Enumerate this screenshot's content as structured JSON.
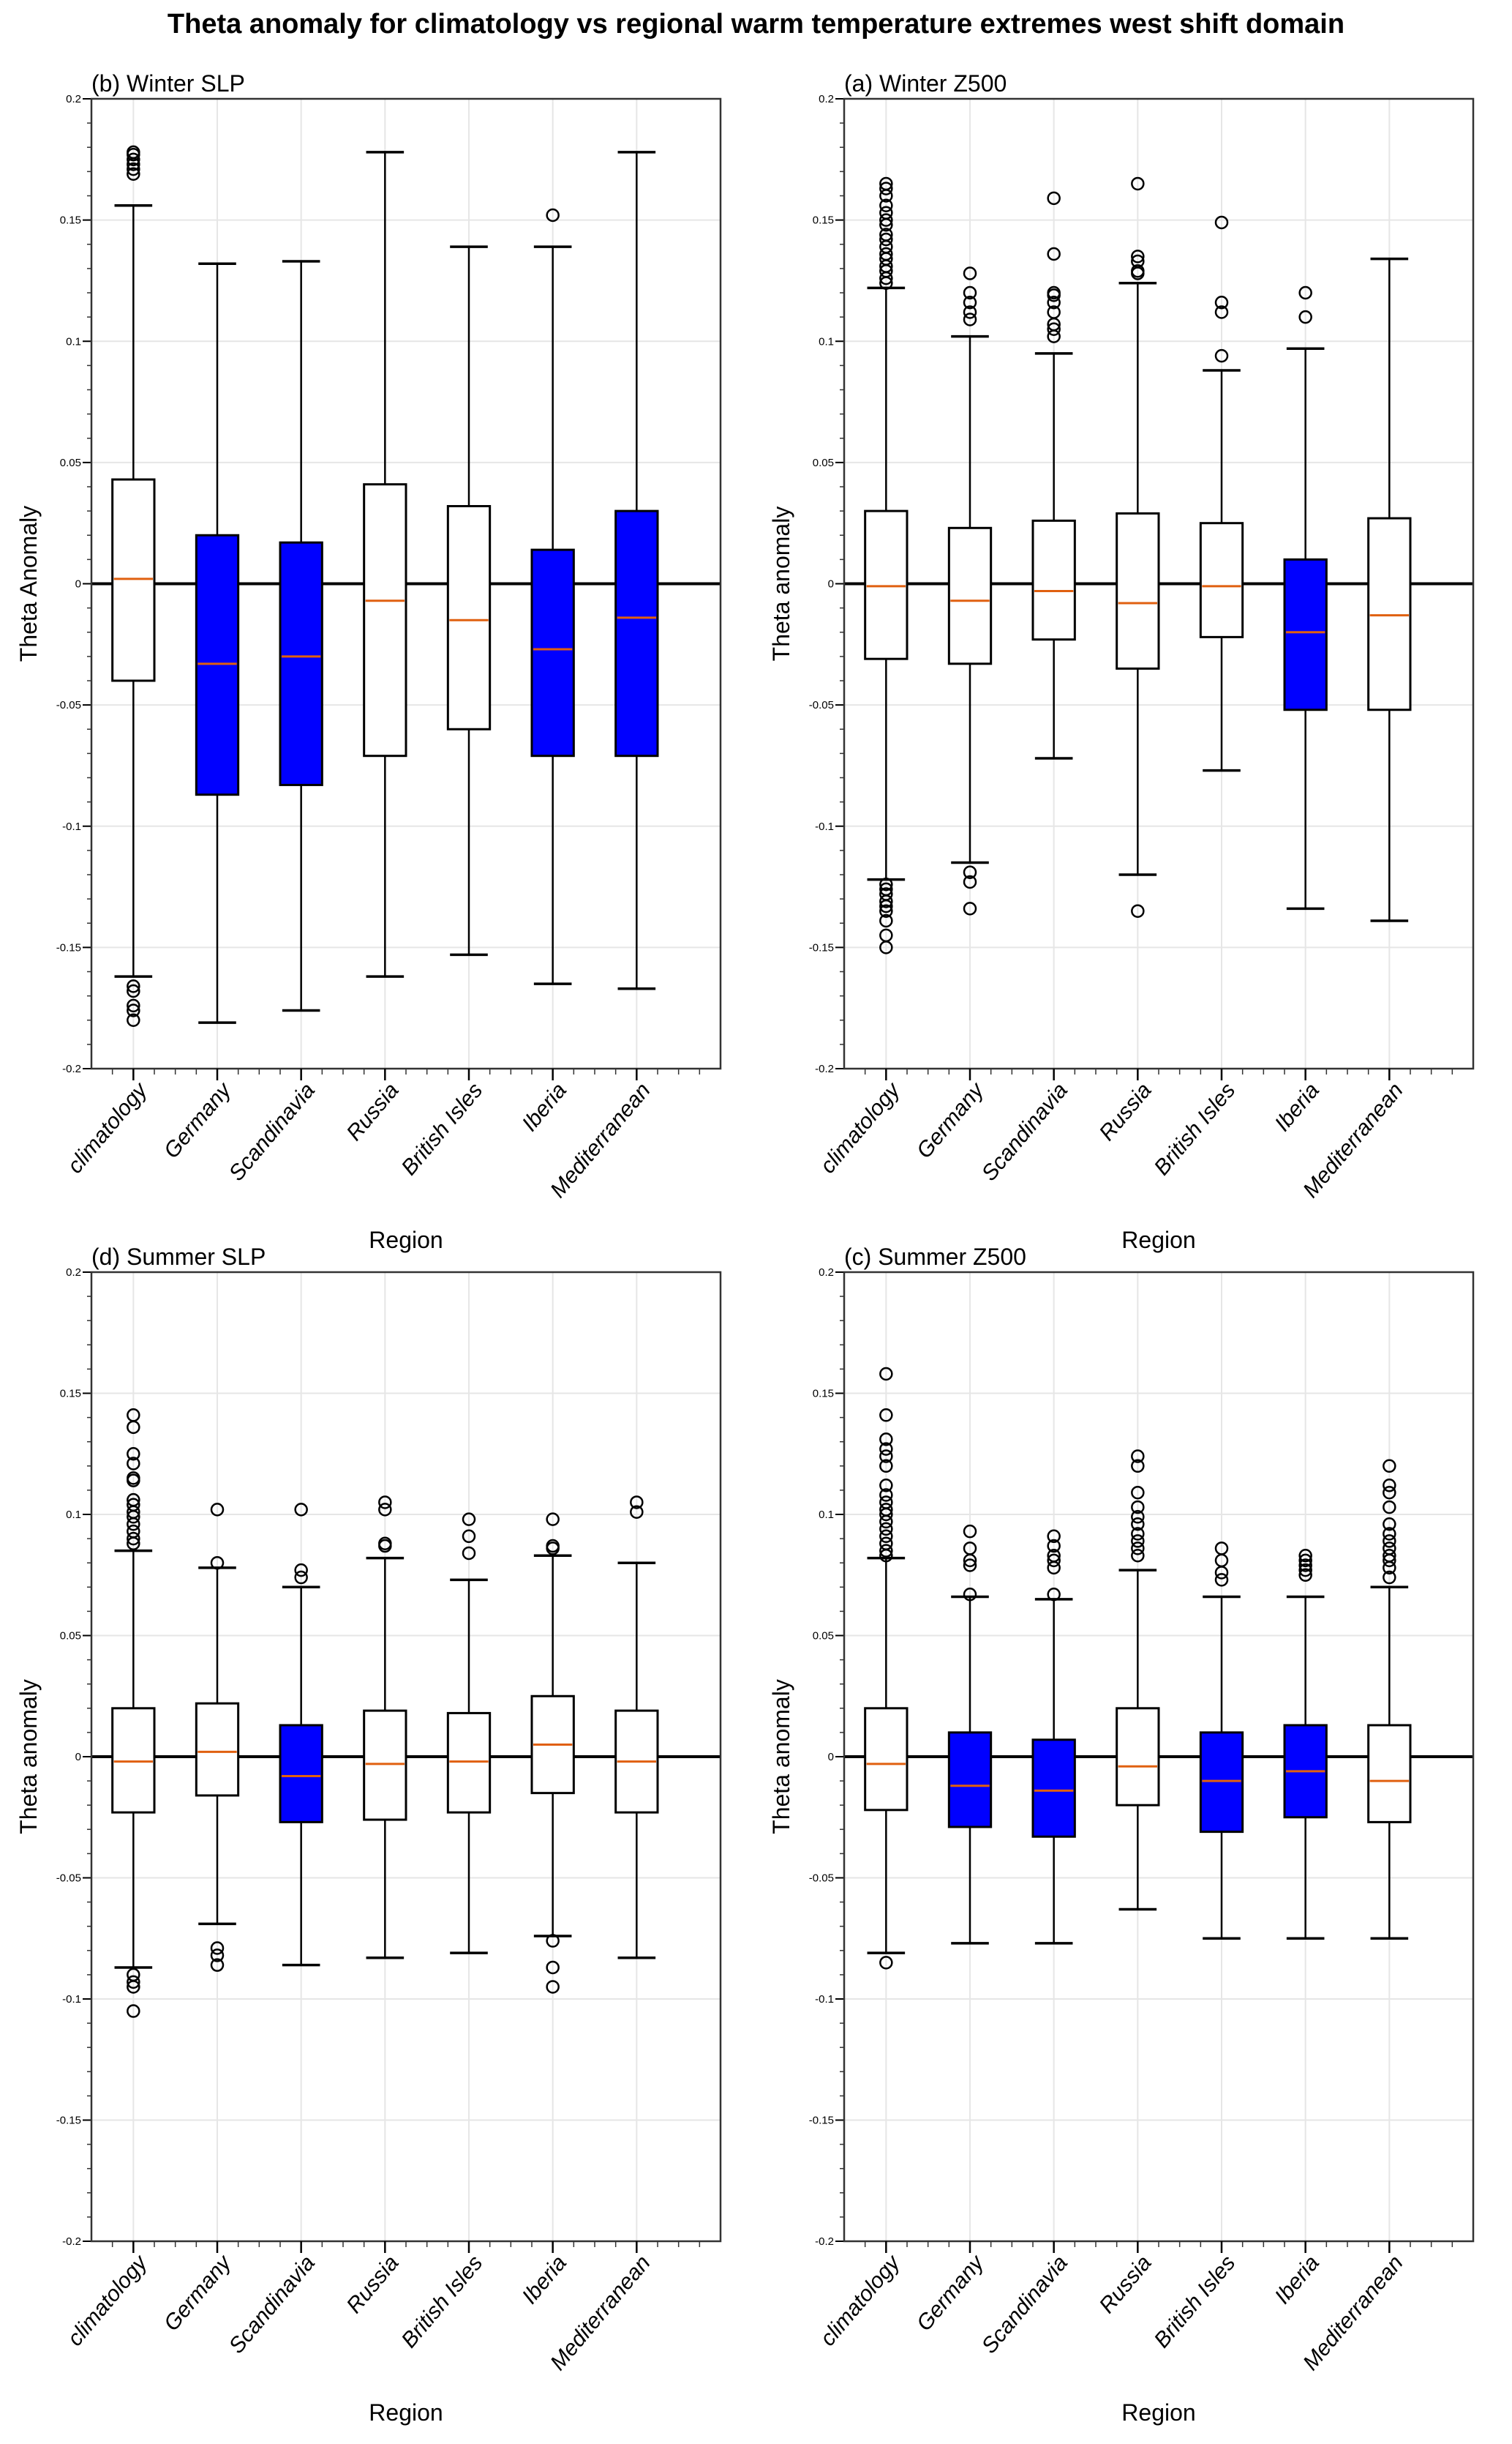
{
  "figure": {
    "title": "Theta anomaly for climatology vs regional warm temperature extremes west shift domain"
  },
  "colors": {
    "significant_fill": "#0000ff",
    "default_fill": "#ffffff",
    "median": "#e06010",
    "box_edge": "#000000",
    "grid": "#e6e6e6",
    "zero_line": "#000000"
  },
  "chart_data": [
    {
      "type": "box",
      "title": "(b) Winter SLP",
      "xlabel": "Region",
      "ylabel": "Theta Anomaly",
      "ylim": [
        -0.2,
        0.2
      ],
      "yticks": [
        0.2,
        0.15,
        0.1,
        0.05,
        0,
        -0.05,
        -0.1,
        -0.15,
        -0.2
      ],
      "ytick_labels": [
        "0.2",
        "0.15",
        "0.1",
        "0.05",
        "0",
        "-0.05",
        "-0.1",
        "-0.15",
        "-0.2"
      ],
      "grid": true,
      "categories": [
        "climatology",
        "Germany",
        "Scandinavia",
        "Russia",
        "British Isles",
        "Iberia",
        "Mediterranean"
      ],
      "boxes": [
        {
          "q1": -0.04,
          "median": 0.002,
          "q3": 0.043,
          "whislo": -0.162,
          "whishi": 0.156,
          "highlight": false,
          "fliers": [
            0.178,
            0.177,
            0.175,
            0.173,
            0.171,
            0.169,
            -0.166,
            -0.168,
            -0.174,
            -0.176,
            -0.18
          ]
        },
        {
          "q1": -0.087,
          "median": -0.033,
          "q3": 0.02,
          "whislo": -0.181,
          "whishi": 0.132,
          "highlight": true,
          "fliers": []
        },
        {
          "q1": -0.083,
          "median": -0.03,
          "q3": 0.017,
          "whislo": -0.176,
          "whishi": 0.133,
          "highlight": true,
          "fliers": []
        },
        {
          "q1": -0.071,
          "median": -0.007,
          "q3": 0.041,
          "whislo": -0.162,
          "whishi": 0.178,
          "highlight": false,
          "fliers": []
        },
        {
          "q1": -0.06,
          "median": -0.015,
          "q3": 0.032,
          "whislo": -0.153,
          "whishi": 0.139,
          "highlight": false,
          "fliers": []
        },
        {
          "q1": -0.071,
          "median": -0.027,
          "q3": 0.014,
          "whislo": -0.165,
          "whishi": 0.139,
          "highlight": true,
          "fliers": [
            0.152
          ]
        },
        {
          "q1": -0.071,
          "median": -0.014,
          "q3": 0.03,
          "whislo": -0.167,
          "whishi": 0.178,
          "highlight": true,
          "fliers": []
        }
      ]
    },
    {
      "type": "box",
      "title": "(a) Winter Z500",
      "xlabel": "Region",
      "ylabel": "Theta anomaly",
      "ylim": [
        -0.2,
        0.2
      ],
      "yticks": [
        0.2,
        0.15,
        0.1,
        0.05,
        0,
        -0.05,
        -0.1,
        -0.15,
        -0.2
      ],
      "ytick_labels": [
        "0.2",
        "0.15",
        "0.1",
        "0.05",
        "0",
        "-0.05",
        "-0.1",
        "-0.15",
        "-0.2"
      ],
      "grid": true,
      "categories": [
        "climatology",
        "Germany",
        "Scandinavia",
        "Russia",
        "British Isles",
        "Iberia",
        "Mediterranean"
      ],
      "boxes": [
        {
          "q1": -0.031,
          "median": -0.001,
          "q3": 0.03,
          "whislo": -0.122,
          "whishi": 0.122,
          "highlight": false,
          "fliers": [
            0.165,
            0.163,
            0.16,
            0.156,
            0.153,
            0.15,
            0.148,
            0.144,
            0.142,
            0.139,
            0.136,
            0.134,
            0.131,
            0.129,
            0.126,
            0.124,
            -0.124,
            -0.126,
            -0.128,
            -0.131,
            -0.133,
            -0.135,
            -0.139,
            -0.145,
            -0.15
          ]
        },
        {
          "q1": -0.033,
          "median": -0.007,
          "q3": 0.023,
          "whislo": -0.115,
          "whishi": 0.102,
          "highlight": false,
          "fliers": [
            0.128,
            0.12,
            0.116,
            0.112,
            0.109,
            -0.119,
            -0.123,
            -0.134
          ]
        },
        {
          "q1": -0.023,
          "median": -0.003,
          "q3": 0.026,
          "whislo": -0.072,
          "whishi": 0.095,
          "highlight": false,
          "fliers": [
            0.159,
            0.136,
            0.12,
            0.119,
            0.116,
            0.112,
            0.107,
            0.105,
            0.102
          ]
        },
        {
          "q1": -0.035,
          "median": -0.008,
          "q3": 0.029,
          "whislo": -0.12,
          "whishi": 0.124,
          "highlight": false,
          "fliers": [
            0.165,
            0.135,
            0.133,
            0.129,
            0.128,
            -0.135
          ]
        },
        {
          "q1": -0.022,
          "median": -0.001,
          "q3": 0.025,
          "whislo": -0.077,
          "whishi": 0.088,
          "highlight": false,
          "fliers": [
            0.149,
            0.116,
            0.112,
            0.094
          ]
        },
        {
          "q1": -0.052,
          "median": -0.02,
          "q3": 0.01,
          "whislo": -0.134,
          "whishi": 0.097,
          "highlight": true,
          "fliers": [
            0.12,
            0.11
          ]
        },
        {
          "q1": -0.052,
          "median": -0.013,
          "q3": 0.027,
          "whislo": -0.139,
          "whishi": 0.134,
          "highlight": false,
          "fliers": []
        }
      ]
    },
    {
      "type": "box",
      "title": "(d) Summer SLP",
      "xlabel": "Region",
      "ylabel": "Theta anomaly",
      "ylim": [
        -0.2,
        0.2
      ],
      "yticks": [
        0.2,
        0.15,
        0.1,
        0.05,
        0,
        -0.05,
        -0.1,
        -0.15,
        -0.2
      ],
      "ytick_labels": [
        "0.2",
        "0.15",
        "0.1",
        "0.05",
        "0",
        "-0.05",
        "-0.1",
        "-0.15",
        "-0.2"
      ],
      "grid": true,
      "categories": [
        "climatology",
        "Germany",
        "Scandinavia",
        "Russia",
        "British Isles",
        "Iberia",
        "Mediterranean"
      ],
      "boxes": [
        {
          "q1": -0.023,
          "median": -0.002,
          "q3": 0.02,
          "whislo": -0.087,
          "whishi": 0.085,
          "highlight": false,
          "fliers": [
            0.141,
            0.136,
            0.125,
            0.121,
            0.115,
            0.114,
            0.106,
            0.104,
            0.101,
            0.099,
            0.096,
            0.093,
            0.09,
            0.088,
            -0.09,
            -0.093,
            -0.095,
            -0.105
          ]
        },
        {
          "q1": -0.016,
          "median": 0.002,
          "q3": 0.022,
          "whislo": -0.069,
          "whishi": 0.078,
          "highlight": false,
          "fliers": [
            0.102,
            0.08,
            -0.079,
            -0.082,
            -0.086
          ]
        },
        {
          "q1": -0.027,
          "median": -0.008,
          "q3": 0.013,
          "whislo": -0.086,
          "whishi": 0.07,
          "highlight": true,
          "fliers": [
            0.102,
            0.077,
            0.074
          ]
        },
        {
          "q1": -0.026,
          "median": -0.003,
          "q3": 0.019,
          "whislo": -0.083,
          "whishi": 0.082,
          "highlight": false,
          "fliers": [
            0.105,
            0.102,
            0.088,
            0.087
          ]
        },
        {
          "q1": -0.023,
          "median": -0.002,
          "q3": 0.018,
          "whislo": -0.081,
          "whishi": 0.073,
          "highlight": false,
          "fliers": [
            0.098,
            0.091,
            0.084
          ]
        },
        {
          "q1": -0.015,
          "median": 0.005,
          "q3": 0.025,
          "whislo": -0.074,
          "whishi": 0.083,
          "highlight": false,
          "fliers": [
            0.098,
            0.087,
            0.086,
            -0.076,
            -0.087,
            -0.095
          ]
        },
        {
          "q1": -0.023,
          "median": -0.002,
          "q3": 0.019,
          "whislo": -0.083,
          "whishi": 0.08,
          "highlight": false,
          "fliers": [
            0.105,
            0.101
          ]
        }
      ]
    },
    {
      "type": "box",
      "title": "(c) Summer Z500",
      "xlabel": "Region",
      "ylabel": "Theta anomaly",
      "ylim": [
        -0.2,
        0.2
      ],
      "yticks": [
        0.2,
        0.15,
        0.1,
        0.05,
        0,
        -0.05,
        -0.1,
        -0.15,
        -0.2
      ],
      "ytick_labels": [
        "0.2",
        "0.15",
        "0.1",
        "0.05",
        "0",
        "-0.05",
        "-0.1",
        "-0.15",
        "-0.2"
      ],
      "grid": true,
      "categories": [
        "climatology",
        "Germany",
        "Scandinavia",
        "Russia",
        "British Isles",
        "Iberia",
        "Mediterranean"
      ],
      "boxes": [
        {
          "q1": -0.022,
          "median": -0.003,
          "q3": 0.02,
          "whislo": -0.081,
          "whishi": 0.082,
          "highlight": false,
          "fliers": [
            0.158,
            0.141,
            0.131,
            0.127,
            0.124,
            0.12,
            0.112,
            0.108,
            0.105,
            0.102,
            0.1,
            0.097,
            0.094,
            0.091,
            0.088,
            0.085,
            0.083,
            -0.085
          ]
        },
        {
          "q1": -0.029,
          "median": -0.012,
          "q3": 0.01,
          "whislo": -0.077,
          "whishi": 0.066,
          "highlight": true,
          "fliers": [
            0.093,
            0.086,
            0.081,
            0.079,
            0.067
          ]
        },
        {
          "q1": -0.033,
          "median": -0.014,
          "q3": 0.007,
          "whislo": -0.077,
          "whishi": 0.065,
          "highlight": true,
          "fliers": [
            0.091,
            0.087,
            0.083,
            0.081,
            0.078,
            0.067
          ]
        },
        {
          "q1": -0.02,
          "median": -0.004,
          "q3": 0.02,
          "whislo": -0.063,
          "whishi": 0.077,
          "highlight": false,
          "fliers": [
            0.124,
            0.12,
            0.109,
            0.103,
            0.099,
            0.096,
            0.092,
            0.089,
            0.086,
            0.083
          ]
        },
        {
          "q1": -0.031,
          "median": -0.01,
          "q3": 0.01,
          "whislo": -0.075,
          "whishi": 0.066,
          "highlight": true,
          "fliers": [
            0.086,
            0.081,
            0.076,
            0.073
          ]
        },
        {
          "q1": -0.025,
          "median": -0.006,
          "q3": 0.013,
          "whislo": -0.075,
          "whishi": 0.066,
          "highlight": true,
          "fliers": [
            0.083,
            0.081,
            0.079,
            0.077,
            0.075
          ]
        },
        {
          "q1": -0.027,
          "median": -0.01,
          "q3": 0.013,
          "whislo": -0.075,
          "whishi": 0.07,
          "highlight": false,
          "fliers": [
            0.12,
            0.112,
            0.109,
            0.103,
            0.096,
            0.092,
            0.089,
            0.086,
            0.083,
            0.081,
            0.078,
            0.074
          ]
        }
      ]
    }
  ]
}
